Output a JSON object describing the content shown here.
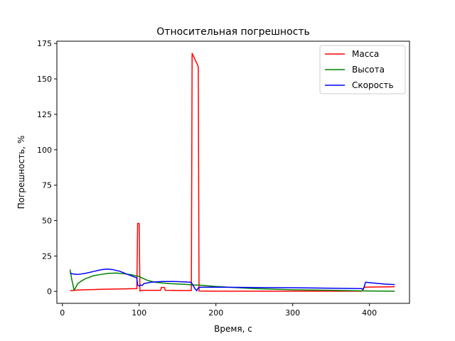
{
  "chart_data": {
    "type": "line",
    "title": "Относительная погрешность",
    "xlabel": "Время, с",
    "ylabel": "Погрешность, %",
    "xlim": [
      -7.2,
      452.2
    ],
    "ylim": [
      -8.4,
      176.6
    ],
    "xticks": [
      0,
      100,
      200,
      300,
      400
    ],
    "yticks": [
      0,
      25,
      50,
      75,
      100,
      125,
      150,
      175
    ],
    "grid": false,
    "legend_position": "top-right",
    "series": [
      {
        "name": "Масса",
        "color": "#ff0000",
        "points": [
          [
            10,
            0.5
          ],
          [
            20,
            1.0
          ],
          [
            50,
            1.5
          ],
          [
            97,
            2.0
          ],
          [
            98,
            48
          ],
          [
            100,
            48
          ],
          [
            101,
            0.3
          ],
          [
            104,
            0.8
          ],
          [
            128,
            0.8
          ],
          [
            129,
            2.8
          ],
          [
            133,
            2.8
          ],
          [
            134,
            0.8
          ],
          [
            168,
            0.6
          ],
          [
            169,
            168
          ],
          [
            176,
            160
          ],
          [
            177,
            158.5
          ],
          [
            178,
            0.3
          ],
          [
            200,
            0.2
          ],
          [
            300,
            0.2
          ],
          [
            390,
            0.2
          ],
          [
            393,
            3.0
          ],
          [
            433,
            3.3
          ]
        ]
      },
      {
        "name": "Высота",
        "color": "#008000",
        "points": [
          [
            10,
            15.5
          ],
          [
            12,
            9
          ],
          [
            14,
            4
          ],
          [
            15,
            1
          ],
          [
            16,
            1.5
          ],
          [
            18,
            3.5
          ],
          [
            20,
            5.5
          ],
          [
            25,
            7.5
          ],
          [
            30,
            9
          ],
          [
            40,
            11
          ],
          [
            50,
            12
          ],
          [
            60,
            12.8
          ],
          [
            70,
            13
          ],
          [
            80,
            12.5
          ],
          [
            90,
            11.8
          ],
          [
            100,
            10.5
          ],
          [
            110,
            8
          ],
          [
            120,
            6.5
          ],
          [
            140,
            5.5
          ],
          [
            160,
            5
          ],
          [
            170,
            4.6
          ],
          [
            180,
            4.4
          ],
          [
            200,
            3.5
          ],
          [
            250,
            2.0
          ],
          [
            300,
            1.2
          ],
          [
            350,
            0.8
          ],
          [
            400,
            0.3
          ],
          [
            433,
            0.2
          ]
        ]
      },
      {
        "name": "Скорость",
        "color": "#0000ff",
        "points": [
          [
            10,
            13
          ],
          [
            15,
            12.2
          ],
          [
            20,
            12
          ],
          [
            30,
            12.8
          ],
          [
            40,
            14
          ],
          [
            50,
            15.3
          ],
          [
            58,
            15.8
          ],
          [
            65,
            15.5
          ],
          [
            75,
            14.2
          ],
          [
            85,
            12
          ],
          [
            95,
            10
          ],
          [
            97,
            9.5
          ],
          [
            98,
            4.5
          ],
          [
            100,
            3.8
          ],
          [
            102,
            4.5
          ],
          [
            104,
            4.2
          ],
          [
            106,
            5.5
          ],
          [
            115,
            6.5
          ],
          [
            130,
            7
          ],
          [
            145,
            7
          ],
          [
            160,
            6.7
          ],
          [
            167,
            6.5
          ],
          [
            169,
            5.5
          ],
          [
            172,
            2.5
          ],
          [
            175,
            0.5
          ],
          [
            177,
            2.5
          ],
          [
            180,
            3.0
          ],
          [
            200,
            3.0
          ],
          [
            300,
            2.6
          ],
          [
            390,
            2.0
          ],
          [
            392,
            1.5
          ],
          [
            393,
            3.0
          ],
          [
            395,
            6.5
          ],
          [
            400,
            6.2
          ],
          [
            420,
            5.2
          ],
          [
            433,
            4.8
          ]
        ]
      }
    ]
  }
}
